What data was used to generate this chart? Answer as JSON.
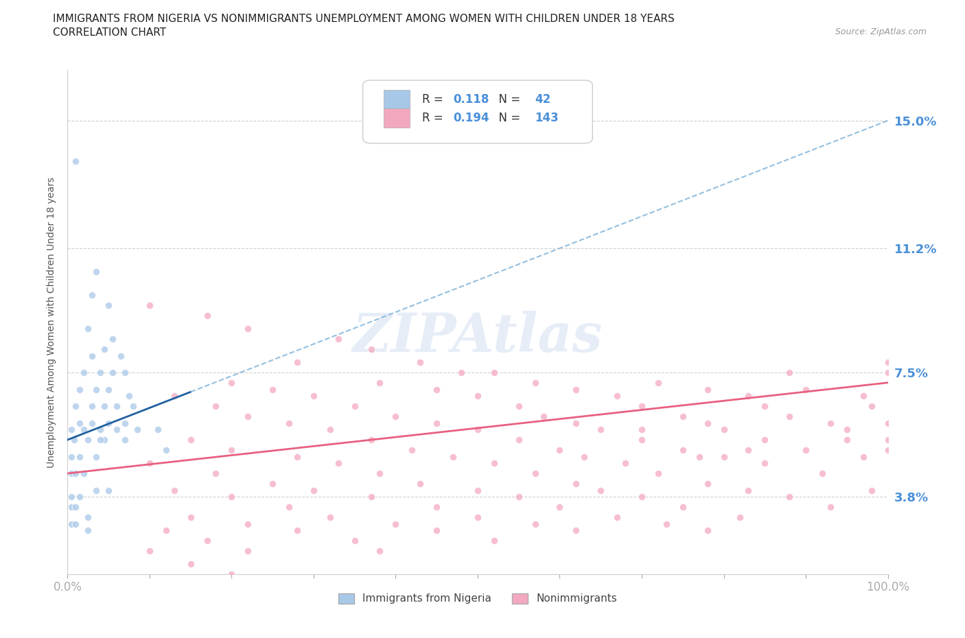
{
  "title_line1": "IMMIGRANTS FROM NIGERIA VS NONIMMIGRANTS UNEMPLOYMENT AMONG WOMEN WITH CHILDREN UNDER 18 YEARS",
  "title_line2": "CORRELATION CHART",
  "source_text": "Source: ZipAtlas.com",
  "ylabel": "Unemployment Among Women with Children Under 18 years",
  "xlim": [
    0,
    100
  ],
  "ylim": [
    1.5,
    16.5
  ],
  "yticks": [
    3.8,
    7.5,
    11.2,
    15.0
  ],
  "ytick_labels": [
    "3.8%",
    "7.5%",
    "11.2%",
    "15.0%"
  ],
  "xticks": [
    0,
    10,
    20,
    30,
    40,
    50,
    60,
    70,
    80,
    90,
    100
  ],
  "legend_entries": [
    {
      "label": "Immigrants from Nigeria",
      "color": "#a8c8e8",
      "R": "0.118",
      "N": "42"
    },
    {
      "label": "Nonimmigrants",
      "color": "#f4a8c0",
      "R": "0.194",
      "N": "143"
    }
  ],
  "blue_trend_x": [
    0,
    100
  ],
  "blue_trend_y": [
    5.5,
    15.0
  ],
  "blue_solid_x_end": 15,
  "pink_trend_x": [
    0,
    100
  ],
  "pink_trend_y": [
    4.5,
    7.2
  ],
  "blue_scatter": [
    [
      1.0,
      13.8
    ],
    [
      3.5,
      10.5
    ],
    [
      3.0,
      9.8
    ],
    [
      5.0,
      9.5
    ],
    [
      2.5,
      8.8
    ],
    [
      5.5,
      8.5
    ],
    [
      3.0,
      8.0
    ],
    [
      4.5,
      8.2
    ],
    [
      6.5,
      8.0
    ],
    [
      2.0,
      7.5
    ],
    [
      4.0,
      7.5
    ],
    [
      5.5,
      7.5
    ],
    [
      7.0,
      7.5
    ],
    [
      1.5,
      7.0
    ],
    [
      3.5,
      7.0
    ],
    [
      5.0,
      7.0
    ],
    [
      7.5,
      6.8
    ],
    [
      1.0,
      6.5
    ],
    [
      3.0,
      6.5
    ],
    [
      4.5,
      6.5
    ],
    [
      6.0,
      6.5
    ],
    [
      8.0,
      6.5
    ],
    [
      1.5,
      6.0
    ],
    [
      3.0,
      6.0
    ],
    [
      5.0,
      6.0
    ],
    [
      7.0,
      6.0
    ],
    [
      0.5,
      5.8
    ],
    [
      2.0,
      5.8
    ],
    [
      4.0,
      5.8
    ],
    [
      6.0,
      5.8
    ],
    [
      8.5,
      5.8
    ],
    [
      0.8,
      5.5
    ],
    [
      2.5,
      5.5
    ],
    [
      4.5,
      5.5
    ],
    [
      7.0,
      5.5
    ],
    [
      0.5,
      5.0
    ],
    [
      1.5,
      5.0
    ],
    [
      3.5,
      5.0
    ],
    [
      0.5,
      4.5
    ],
    [
      1.0,
      4.5
    ],
    [
      2.0,
      4.5
    ],
    [
      3.5,
      4.0
    ],
    [
      5.0,
      4.0
    ],
    [
      0.5,
      3.8
    ],
    [
      1.5,
      3.8
    ],
    [
      0.5,
      3.5
    ],
    [
      1.0,
      3.5
    ],
    [
      2.5,
      3.2
    ],
    [
      0.5,
      3.0
    ],
    [
      1.0,
      3.0
    ],
    [
      4.0,
      5.5
    ],
    [
      11.0,
      5.8
    ],
    [
      12.0,
      5.2
    ],
    [
      2.5,
      2.8
    ]
  ],
  "pink_scatter": [
    [
      10.0,
      9.5
    ],
    [
      17.0,
      9.2
    ],
    [
      22.0,
      8.8
    ],
    [
      33.0,
      8.5
    ],
    [
      37.0,
      8.2
    ],
    [
      28.0,
      7.8
    ],
    [
      43.0,
      7.8
    ],
    [
      48.0,
      7.5
    ],
    [
      52.0,
      7.5
    ],
    [
      20.0,
      7.2
    ],
    [
      38.0,
      7.2
    ],
    [
      57.0,
      7.2
    ],
    [
      72.0,
      7.2
    ],
    [
      25.0,
      7.0
    ],
    [
      45.0,
      7.0
    ],
    [
      62.0,
      7.0
    ],
    [
      78.0,
      7.0
    ],
    [
      90.0,
      7.0
    ],
    [
      13.0,
      6.8
    ],
    [
      30.0,
      6.8
    ],
    [
      50.0,
      6.8
    ],
    [
      67.0,
      6.8
    ],
    [
      83.0,
      6.8
    ],
    [
      97.0,
      6.8
    ],
    [
      18.0,
      6.5
    ],
    [
      35.0,
      6.5
    ],
    [
      55.0,
      6.5
    ],
    [
      70.0,
      6.5
    ],
    [
      85.0,
      6.5
    ],
    [
      98.0,
      6.5
    ],
    [
      22.0,
      6.2
    ],
    [
      40.0,
      6.2
    ],
    [
      58.0,
      6.2
    ],
    [
      75.0,
      6.2
    ],
    [
      88.0,
      6.2
    ],
    [
      27.0,
      6.0
    ],
    [
      45.0,
      6.0
    ],
    [
      62.0,
      6.0
    ],
    [
      78.0,
      6.0
    ],
    [
      93.0,
      6.0
    ],
    [
      100.0,
      6.0
    ],
    [
      32.0,
      5.8
    ],
    [
      50.0,
      5.8
    ],
    [
      65.0,
      5.8
    ],
    [
      80.0,
      5.8
    ],
    [
      95.0,
      5.8
    ],
    [
      15.0,
      5.5
    ],
    [
      37.0,
      5.5
    ],
    [
      55.0,
      5.5
    ],
    [
      70.0,
      5.5
    ],
    [
      85.0,
      5.5
    ],
    [
      100.0,
      5.5
    ],
    [
      20.0,
      5.2
    ],
    [
      42.0,
      5.2
    ],
    [
      60.0,
      5.2
    ],
    [
      75.0,
      5.2
    ],
    [
      90.0,
      5.2
    ],
    [
      28.0,
      5.0
    ],
    [
      47.0,
      5.0
    ],
    [
      63.0,
      5.0
    ],
    [
      80.0,
      5.0
    ],
    [
      97.0,
      5.0
    ],
    [
      10.0,
      4.8
    ],
    [
      33.0,
      4.8
    ],
    [
      52.0,
      4.8
    ],
    [
      68.0,
      4.8
    ],
    [
      85.0,
      4.8
    ],
    [
      18.0,
      4.5
    ],
    [
      38.0,
      4.5
    ],
    [
      57.0,
      4.5
    ],
    [
      72.0,
      4.5
    ],
    [
      92.0,
      4.5
    ],
    [
      25.0,
      4.2
    ],
    [
      43.0,
      4.2
    ],
    [
      62.0,
      4.2
    ],
    [
      78.0,
      4.2
    ],
    [
      13.0,
      4.0
    ],
    [
      30.0,
      4.0
    ],
    [
      50.0,
      4.0
    ],
    [
      65.0,
      4.0
    ],
    [
      83.0,
      4.0
    ],
    [
      98.0,
      4.0
    ],
    [
      20.0,
      3.8
    ],
    [
      37.0,
      3.8
    ],
    [
      55.0,
      3.8
    ],
    [
      70.0,
      3.8
    ],
    [
      88.0,
      3.8
    ],
    [
      27.0,
      3.5
    ],
    [
      45.0,
      3.5
    ],
    [
      60.0,
      3.5
    ],
    [
      75.0,
      3.5
    ],
    [
      93.0,
      3.5
    ],
    [
      15.0,
      3.2
    ],
    [
      32.0,
      3.2
    ],
    [
      50.0,
      3.2
    ],
    [
      67.0,
      3.2
    ],
    [
      82.0,
      3.2
    ],
    [
      22.0,
      3.0
    ],
    [
      40.0,
      3.0
    ],
    [
      57.0,
      3.0
    ],
    [
      73.0,
      3.0
    ],
    [
      12.0,
      2.8
    ],
    [
      28.0,
      2.8
    ],
    [
      45.0,
      2.8
    ],
    [
      62.0,
      2.8
    ],
    [
      78.0,
      2.8
    ],
    [
      17.0,
      2.5
    ],
    [
      35.0,
      2.5
    ],
    [
      52.0,
      2.5
    ],
    [
      10.0,
      2.2
    ],
    [
      22.0,
      2.2
    ],
    [
      38.0,
      2.2
    ],
    [
      15.0,
      1.8
    ],
    [
      20.0,
      1.5
    ],
    [
      100.0,
      7.8
    ],
    [
      100.0,
      7.5
    ],
    [
      100.0,
      5.2
    ],
    [
      88.0,
      7.5
    ],
    [
      95.0,
      5.5
    ],
    [
      83.0,
      5.2
    ],
    [
      77.0,
      5.0
    ],
    [
      70.0,
      5.8
    ]
  ],
  "watermark_text": "ZIPAtlas",
  "blue_color": "#a8c8e8",
  "pink_color": "#f4a8c0",
  "blue_solid_color": "#2060a0",
  "blue_dash_color": "#7ab0d8",
  "pink_line_color": "#e86080",
  "grid_color": "#d0d0d0",
  "ytick_color": "#4a90d9",
  "xtick_color": "#4a90d9"
}
